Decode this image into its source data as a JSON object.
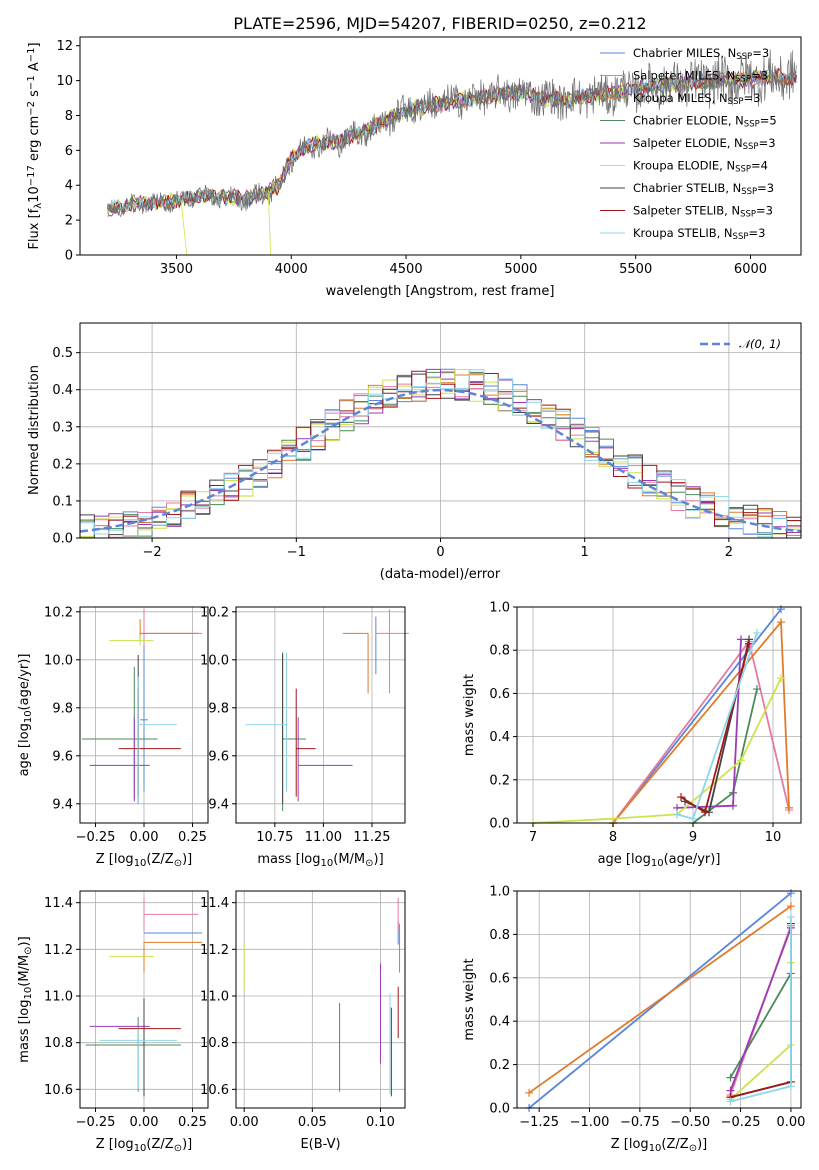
{
  "colors": {
    "Chabrier MILES": "#5b86d9",
    "Salpeter MILES": "#e37ba6",
    "Kroupa MILES": "#e07b2a",
    "Chabrier ELODIE": "#4d8a5b",
    "Salpeter ELODIE": "#9b3bb5",
    "Kroupa ELODIE": "#cde34e",
    "Chabrier STELIB": "#444444",
    "Salpeter STELIB": "#a01818",
    "Kroupa STELIB": "#8fd6e8"
  },
  "chart_data": [
    {
      "id": "spectrum",
      "type": "line",
      "title": "PLATE=2596, MJD=54207, FIBERID=0250, z=0.212",
      "xlabel": "wavelength [Angstrom, rest frame]",
      "ylabel": "Flux [f$_\\lambda$10$^{-17}$ erg cm$^{-2}$ s$^{-1}$ A$^{-1}$]",
      "ylabel_parts": [
        "Flux [f",
        "λ",
        "10",
        "−17",
        " erg cm",
        "−2",
        " s",
        "−1",
        " A",
        "−1",
        "]"
      ],
      "xlim": [
        3080,
        6220
      ],
      "ylim": [
        0,
        12.5
      ],
      "xticks": [
        3500,
        4000,
        4500,
        5000,
        5500,
        6000
      ],
      "yticks": [
        0,
        2,
        4,
        6,
        8,
        10,
        12
      ],
      "grid": false,
      "legend_position": "upper right",
      "legend": [
        {
          "name": "Chabrier MILES",
          "nssp": "3"
        },
        {
          "name": "Salpeter MILES",
          "nssp": "3"
        },
        {
          "name": "Kroupa MILES",
          "nssp": "3"
        },
        {
          "name": "Chabrier ELODIE",
          "nssp": "5"
        },
        {
          "name": "Salpeter ELODIE",
          "nssp": "3"
        },
        {
          "name": "Kroupa ELODIE",
          "nssp": "4"
        },
        {
          "name": "Chabrier STELIB",
          "nssp": "3"
        },
        {
          "name": "Salpeter STELIB",
          "nssp": "3"
        },
        {
          "name": "Kroupa STELIB",
          "nssp": "3"
        }
      ],
      "nssp_prefix": "N",
      "nssp_sub": "SSP",
      "continuum": {
        "x": [
          3200,
          3300,
          3400,
          3500,
          3600,
          3700,
          3800,
          3900,
          3950,
          4000,
          4100,
          4200,
          4300,
          4400,
          4500,
          4600,
          4700,
          4800,
          4900,
          5000,
          5100,
          5200,
          5300,
          5400,
          5500,
          5600,
          5700,
          5800,
          5900,
          6000,
          6100
        ],
        "y": [
          2.6,
          2.9,
          3.0,
          3.1,
          3.4,
          3.3,
          3.2,
          3.6,
          4.0,
          5.6,
          6.4,
          6.5,
          7.0,
          7.6,
          8.3,
          8.6,
          8.8,
          9.0,
          9.2,
          9.3,
          9.0,
          8.9,
          9.1,
          9.3,
          9.5,
          9.7,
          9.8,
          9.9,
          10.0,
          10.1,
          10.2
        ]
      },
      "model_start": 3200,
      "model_end": 6200
    },
    {
      "id": "residuals",
      "type": "histogram",
      "xlabel": "(data-model)/error",
      "ylabel": "Normed distribution",
      "xlim": [
        -2.5,
        2.5
      ],
      "ylim": [
        0,
        0.58
      ],
      "xticks": [
        -2,
        -1,
        0,
        1,
        2
      ],
      "yticks": [
        0.0,
        0.1,
        0.2,
        0.3,
        0.4,
        0.5
      ],
      "grid": true,
      "legend_position": "upper right",
      "gaussian_label": "𝒩(0, 1)",
      "gaussian_color": "#5b86d9",
      "bin_width": 0.1,
      "bin_start": -2.5
    },
    {
      "id": "age_vs_Z",
      "type": "errorbar",
      "xlabel": "Z [log",
      "xlabel_parts": [
        "Z [log",
        "10",
        "(Z/Z",
        "⊙",
        ")]"
      ],
      "ylabel_parts": [
        "age  [log",
        "10",
        "(age/yr)]"
      ],
      "xlim": [
        -0.33,
        0.33
      ],
      "ylim": [
        9.32,
        10.22
      ],
      "xticks": [
        -0.25,
        0.0,
        0.25
      ],
      "xticklabels": [
        "−0.25",
        "0.00",
        "0.25"
      ],
      "yticks": [
        9.4,
        9.6,
        9.8,
        10.0,
        10.2
      ],
      "grid": true,
      "points": [
        {
          "series": "Chabrier MILES",
          "x": 0.0,
          "y": 9.75,
          "xerr": [
            0.02,
            0.02
          ],
          "yerr": [
            0.3,
            0.45
          ]
        },
        {
          "series": "Salpeter MILES",
          "x": 0.0,
          "y": 10.11,
          "xerr": [
            0.02,
            0.3
          ],
          "yerr": [
            0.05,
            0.1
          ]
        },
        {
          "series": "Kroupa MILES",
          "x": -0.02,
          "y": 10.11,
          "xerr": [
            0.0,
            0.3
          ],
          "yerr": [
            0.03,
            0.06
          ]
        },
        {
          "series": "Chabrier ELODIE",
          "x": -0.05,
          "y": 9.67,
          "xerr": [
            0.27,
            0.12
          ],
          "yerr": [
            0.25,
            0.3
          ]
        },
        {
          "series": "Salpeter ELODIE",
          "x": -0.05,
          "y": 9.56,
          "xerr": [
            0.23,
            0.08
          ],
          "yerr": [
            0.15,
            0.2
          ]
        },
        {
          "series": "Kroupa ELODIE",
          "x": -0.02,
          "y": 10.08,
          "xerr": [
            0.16,
            0.07
          ],
          "yerr": [
            0.02,
            0.02
          ]
        },
        {
          "series": "Chabrier STELIB",
          "x": -0.03,
          "y": 9.7,
          "xerr": [
            0.0,
            0.0
          ],
          "yerr": [
            0.3,
            0.32
          ]
        },
        {
          "series": "Salpeter STELIB",
          "x": -0.03,
          "y": 9.63,
          "xerr": [
            0.1,
            0.22
          ],
          "yerr": [
            0.2,
            0.25
          ]
        },
        {
          "series": "Kroupa STELIB",
          "x": -0.03,
          "y": 9.73,
          "xerr": [
            0.0,
            0.2
          ],
          "yerr": [
            0.33,
            0.2
          ]
        }
      ]
    },
    {
      "id": "age_vs_mass",
      "type": "errorbar",
      "xlabel_parts": [
        "mass [log",
        "10",
        "(M/M",
        "⊙",
        ")]"
      ],
      "xlim": [
        10.55,
        11.42
      ],
      "ylim": [
        9.32,
        10.22
      ],
      "xticks": [
        10.75,
        11.0,
        11.25
      ],
      "xticklabels": [
        "10.75",
        "11.00",
        "11.25"
      ],
      "yticks": [
        9.4,
        9.6,
        9.8,
        10.0,
        10.2
      ],
      "grid": true,
      "points": [
        {
          "series": "Chabrier MILES",
          "x": 11.27,
          "y": 10.0,
          "xerr": [
            0.0,
            0.0
          ],
          "yerr": [
            0.06,
            0.18
          ]
        },
        {
          "series": "Salpeter MILES",
          "x": 11.34,
          "y": 10.11,
          "xerr": [
            0.07,
            0.1
          ],
          "yerr": [
            0.25,
            0.1
          ]
        },
        {
          "series": "Kroupa MILES",
          "x": 11.23,
          "y": 10.11,
          "xerr": [
            0.13,
            0.0
          ],
          "yerr": [
            0.25,
            0.0
          ]
        },
        {
          "series": "Chabrier ELODIE",
          "x": 10.79,
          "y": 9.67,
          "xerr": [
            0.0,
            0.12
          ],
          "yerr": [
            0.3,
            0.35
          ]
        },
        {
          "series": "Salpeter ELODIE",
          "x": 10.87,
          "y": 9.56,
          "xerr": [
            0.0,
            0.28
          ],
          "yerr": [
            0.15,
            0.2
          ]
        },
        {
          "series": "Kroupa ELODIE",
          "x": 11.17,
          "y": 10.08,
          "xerr": [
            0.0,
            0.0
          ],
          "yerr": [
            0.0,
            0.0
          ]
        },
        {
          "series": "Chabrier STELIB",
          "x": 10.79,
          "y": 9.73,
          "xerr": [
            0.0,
            0.0
          ],
          "yerr": [
            0.33,
            0.3
          ]
        },
        {
          "series": "Salpeter STELIB",
          "x": 10.86,
          "y": 9.63,
          "xerr": [
            0.0,
            0.1
          ],
          "yerr": [
            0.2,
            0.25
          ]
        },
        {
          "series": "Kroupa STELIB",
          "x": 10.81,
          "y": 9.73,
          "xerr": [
            0.21,
            0.0
          ],
          "yerr": [
            0.28,
            0.3
          ]
        }
      ]
    },
    {
      "id": "mass_vs_Z",
      "type": "errorbar",
      "ylabel_parts": [
        "mass [log",
        "10",
        "(M/M",
        "⊙",
        ")]"
      ],
      "xlabel_parts": [
        "Z [log",
        "10",
        "(Z/Z",
        "⊙",
        ")]"
      ],
      "xlim": [
        -0.33,
        0.33
      ],
      "ylim": [
        10.52,
        11.45
      ],
      "xticks": [
        -0.25,
        0.0,
        0.25
      ],
      "xticklabels": [
        "−0.25",
        "0.00",
        "0.25"
      ],
      "yticks": [
        10.6,
        10.8,
        11.0,
        11.2,
        11.4
      ],
      "grid": true,
      "points": [
        {
          "series": "Chabrier MILES",
          "x": 0.0,
          "y": 11.27,
          "xerr": [
            0.0,
            0.3
          ],
          "yerr": [
            0.0,
            0.0
          ]
        },
        {
          "series": "Salpeter MILES",
          "x": 0.0,
          "y": 11.35,
          "xerr": [
            0.0,
            0.28
          ],
          "yerr": [
            0.07,
            0.07
          ]
        },
        {
          "series": "Kroupa MILES",
          "x": 0.0,
          "y": 11.23,
          "xerr": [
            0.0,
            0.3
          ],
          "yerr": [
            0.13,
            0.0
          ]
        },
        {
          "series": "Chabrier ELODIE",
          "x": -0.03,
          "y": 10.79,
          "xerr": [
            0.27,
            0.22
          ],
          "yerr": [
            0.2,
            0.12
          ]
        },
        {
          "series": "Salpeter ELODIE",
          "x": -0.05,
          "y": 10.87,
          "xerr": [
            0.23,
            0.08
          ],
          "yerr": [
            0.0,
            0.0
          ]
        },
        {
          "series": "Kroupa ELODIE",
          "x": -0.02,
          "y": 11.17,
          "xerr": [
            0.16,
            0.07
          ],
          "yerr": [
            0.0,
            0.0
          ]
        },
        {
          "series": "Chabrier STELIB",
          "x": 0.0,
          "y": 10.79,
          "xerr": [
            0.0,
            0.0
          ],
          "yerr": [
            0.22,
            0.2
          ]
        },
        {
          "series": "Salpeter STELIB",
          "x": -0.01,
          "y": 10.86,
          "xerr": [
            0.12,
            0.2
          ],
          "yerr": [
            0.0,
            0.0
          ]
        },
        {
          "series": "Kroupa STELIB",
          "x": -0.03,
          "y": 10.81,
          "xerr": [
            0.2,
            0.2
          ],
          "yerr": [
            0.21,
            0.05
          ]
        }
      ]
    },
    {
      "id": "mass_vs_EBV",
      "type": "errorbar",
      "xlabel": "E(B-V)",
      "xlim": [
        -0.006,
        0.118
      ],
      "ylim": [
        10.52,
        11.45
      ],
      "xticks": [
        0.0,
        0.05,
        0.1
      ],
      "xticklabels": [
        "0.00",
        "0.05",
        "0.10"
      ],
      "yticks": [
        10.6,
        10.8,
        11.0,
        11.2,
        11.4
      ],
      "grid": true,
      "points": [
        {
          "series": "Chabrier MILES",
          "x": 0.113,
          "y": 11.27,
          "xerr": [
            0,
            0
          ],
          "yerr": [
            0.05,
            0.05
          ]
        },
        {
          "series": "Salpeter MILES",
          "x": 0.113,
          "y": 11.35,
          "xerr": [
            0,
            0
          ],
          "yerr": [
            0.07,
            0.07
          ]
        },
        {
          "series": "Kroupa MILES",
          "x": 0.114,
          "y": 11.23,
          "xerr": [
            0,
            0
          ],
          "yerr": [
            0.13,
            0.08
          ]
        },
        {
          "series": "Chabrier ELODIE",
          "x": 0.07,
          "y": 10.79,
          "xerr": [
            0,
            0
          ],
          "yerr": [
            0.2,
            0.18
          ]
        },
        {
          "series": "Salpeter ELODIE",
          "x": 0.1,
          "y": 10.92,
          "xerr": [
            0,
            0
          ],
          "yerr": [
            0.21,
            0.22
          ]
        },
        {
          "series": "Kroupa ELODIE",
          "x": 0.0,
          "y": 11.13,
          "xerr": [
            0,
            0
          ],
          "yerr": [
            0.1,
            0.1
          ]
        },
        {
          "series": "Chabrier STELIB",
          "x": 0.108,
          "y": 10.79,
          "xerr": [
            0,
            0
          ],
          "yerr": [
            0.22,
            0.16
          ]
        },
        {
          "series": "Salpeter STELIB",
          "x": 0.113,
          "y": 10.86,
          "xerr": [
            0,
            0
          ],
          "yerr": [
            0.04,
            0.18
          ]
        },
        {
          "series": "Kroupa STELIB",
          "x": 0.107,
          "y": 10.81,
          "xerr": [
            0,
            0
          ],
          "yerr": [
            0.23,
            0.2
          ]
        }
      ]
    },
    {
      "id": "weight_vs_age",
      "type": "line",
      "ylabel": "mass weight",
      "xlabel_parts": [
        "age  [log",
        "10",
        "(age/yr)]"
      ],
      "xlim": [
        6.8,
        10.35
      ],
      "ylim": [
        0,
        1.0
      ],
      "xticks": [
        7,
        8,
        9,
        10
      ],
      "yticks": [
        0.0,
        0.2,
        0.4,
        0.6,
        0.8,
        1.0
      ],
      "yticklabels": [
        "0.0",
        "0.2",
        "0.4",
        "0.6",
        "0.8",
        "1.0"
      ],
      "grid": true,
      "series": [
        {
          "name": "Chabrier MILES",
          "x": [
            8.0,
            10.1
          ],
          "y": [
            0.0,
            0.99
          ]
        },
        {
          "name": "Salpeter MILES",
          "x": [
            8.0,
            9.7,
            10.2
          ],
          "y": [
            0.0,
            0.84,
            0.06
          ]
        },
        {
          "name": "Kroupa MILES",
          "x": [
            8.0,
            10.1,
            10.2
          ],
          "y": [
            0.0,
            0.93,
            0.07
          ]
        },
        {
          "name": "Chabrier ELODIE",
          "x": [
            9.0,
            9.5,
            9.8
          ],
          "y": [
            0.0,
            0.14,
            0.62
          ]
        },
        {
          "name": "Salpeter ELODIE",
          "x": [
            8.8,
            9.5,
            9.6
          ],
          "y": [
            0.07,
            0.08,
            0.85
          ]
        },
        {
          "name": "Kroupa ELODIE",
          "x": [
            7.0,
            8.0,
            8.8,
            9.6,
            10.1
          ],
          "y": [
            0.0,
            0.02,
            0.04,
            0.29,
            0.67
          ]
        },
        {
          "name": "Chabrier STELIB",
          "x": [
            8.9,
            9.2,
            9.7
          ],
          "y": [
            0.1,
            0.05,
            0.85
          ]
        },
        {
          "name": "Salpeter STELIB",
          "x": [
            8.85,
            9.15,
            9.7
          ],
          "y": [
            0.12,
            0.05,
            0.83
          ]
        },
        {
          "name": "Kroupa STELIB",
          "x": [
            8.8,
            9.0,
            9.8
          ],
          "y": [
            0.04,
            0.02,
            0.88
          ]
        }
      ]
    },
    {
      "id": "weight_vs_Z",
      "type": "line",
      "ylabel": "mass weight",
      "xlabel_parts": [
        "Z [log",
        "10",
        "(Z/Z",
        "⊙",
        ")]"
      ],
      "xlim": [
        -1.36,
        0.05
      ],
      "ylim": [
        0,
        1.0
      ],
      "xticks": [
        -1.25,
        -1.0,
        -0.75,
        -0.5,
        -0.25,
        0.0
      ],
      "xticklabels": [
        "−1.25",
        "−1.00",
        "−0.75",
        "−0.50",
        "−0.25",
        "0.00"
      ],
      "yticks": [
        0.0,
        0.2,
        0.4,
        0.6,
        0.8,
        1.0
      ],
      "yticklabels": [
        "0.0",
        "0.2",
        "0.4",
        "0.6",
        "0.8",
        "1.0"
      ],
      "grid": true,
      "series": [
        {
          "name": "Chabrier MILES",
          "x": [
            -1.3,
            0.0
          ],
          "y": [
            0.0,
            0.99
          ]
        },
        {
          "name": "Salpeter MILES",
          "x": [
            -0.3,
            0.0
          ],
          "y": [
            0.06,
            0.84
          ]
        },
        {
          "name": "Kroupa MILES",
          "x": [
            -1.3,
            0.0
          ],
          "y": [
            0.07,
            0.93
          ]
        },
        {
          "name": "Chabrier ELODIE",
          "x": [
            -0.3,
            0.0
          ],
          "y": [
            0.14,
            0.62
          ]
        },
        {
          "name": "Salpeter ELODIE",
          "x": [
            -0.3,
            0.0
          ],
          "y": [
            0.08,
            0.83
          ]
        },
        {
          "name": "Kroupa ELODIE",
          "x": [
            -0.3,
            0.0,
            0.0
          ],
          "y": [
            0.04,
            0.29,
            0.67
          ]
        },
        {
          "name": "Chabrier STELIB",
          "x": [
            -0.3,
            0.0,
            0.0
          ],
          "y": [
            0.05,
            0.12,
            0.85
          ]
        },
        {
          "name": "Salpeter STELIB",
          "x": [
            -0.3,
            0.0
          ],
          "y": [
            0.05,
            0.12
          ]
        },
        {
          "name": "Kroupa STELIB",
          "x": [
            -0.3,
            0.0,
            0.0
          ],
          "y": [
            0.03,
            0.1,
            0.88
          ]
        }
      ]
    }
  ]
}
